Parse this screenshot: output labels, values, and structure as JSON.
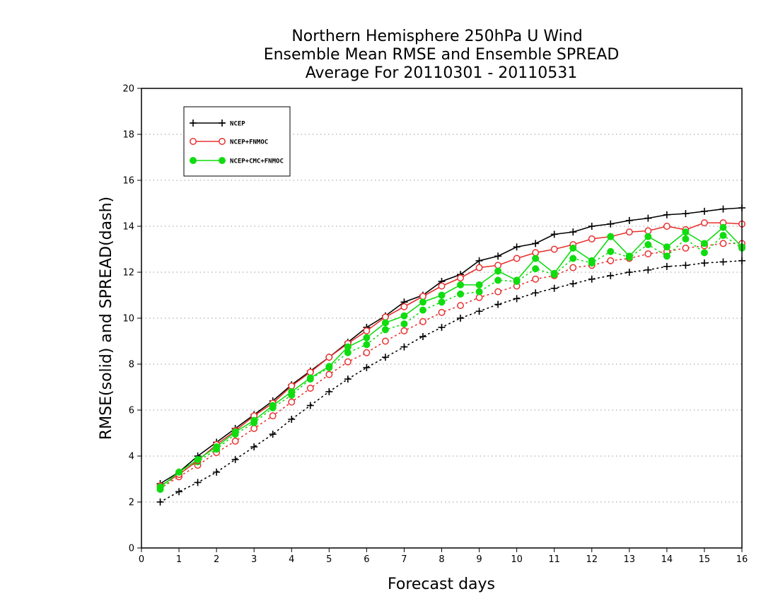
{
  "chart_data": {
    "type": "line",
    "title": [
      "Northern Hemisphere 250hPa U Wind",
      "Ensemble Mean RMSE and Ensemble SPREAD",
      "Average For 20110301 - 20110531"
    ],
    "xlabel": "Forecast days",
    "ylabel": "RMSE(solid) and SPREAD(dash)",
    "xlim": [
      0,
      16
    ],
    "ylim": [
      0,
      20
    ],
    "x_ticks": [
      0,
      1,
      2,
      3,
      4,
      5,
      6,
      7,
      8,
      9,
      10,
      11,
      12,
      13,
      14,
      15,
      16
    ],
    "y_ticks": [
      0,
      2,
      4,
      6,
      8,
      10,
      12,
      14,
      16,
      18,
      20
    ],
    "grid": "horizontal dotted",
    "legend_position": "top-left",
    "x": [
      0.5,
      1,
      1.5,
      2,
      2.5,
      3,
      3.5,
      4,
      4.5,
      5,
      5.5,
      6,
      6.5,
      7,
      7.5,
      8,
      8.5,
      9,
      9.5,
      10,
      10.5,
      11,
      11.5,
      12,
      12.5,
      13,
      13.5,
      14,
      14.5,
      15,
      15.5,
      16
    ],
    "series": [
      {
        "name": "NCEP",
        "color": "#000000",
        "marker": "plus",
        "rmse": [
          2.8,
          3.3,
          4.0,
          4.6,
          5.2,
          5.8,
          6.4,
          7.1,
          7.7,
          8.3,
          8.95,
          9.6,
          10.1,
          10.7,
          11.0,
          11.6,
          11.9,
          12.5,
          12.7,
          13.1,
          13.25,
          13.65,
          13.75,
          14.0,
          14.1,
          14.25,
          14.35,
          14.5,
          14.55,
          14.65,
          14.75,
          14.8
        ],
        "spread": [
          2.0,
          2.45,
          2.85,
          3.3,
          3.85,
          4.4,
          4.95,
          5.6,
          6.2,
          6.8,
          7.35,
          7.85,
          8.3,
          8.75,
          9.2,
          9.6,
          10.0,
          10.3,
          10.6,
          10.85,
          11.1,
          11.3,
          11.5,
          11.7,
          11.85,
          12.0,
          12.1,
          12.25,
          12.3,
          12.4,
          12.45,
          12.5
        ]
      },
      {
        "name": "NCEP+FNMOC",
        "color": "#e83030",
        "marker": "open-circle",
        "rmse": [
          2.7,
          3.2,
          3.8,
          4.5,
          5.1,
          5.75,
          6.3,
          7.05,
          7.65,
          8.3,
          8.9,
          9.45,
          10.05,
          10.5,
          10.95,
          11.4,
          11.75,
          12.2,
          12.3,
          12.6,
          12.85,
          13.0,
          13.2,
          13.45,
          13.55,
          13.75,
          13.8,
          14.0,
          13.85,
          14.15,
          14.15,
          14.1
        ],
        "spread": [
          2.6,
          3.1,
          3.6,
          4.15,
          4.65,
          5.2,
          5.75,
          6.35,
          6.95,
          7.55,
          8.1,
          8.5,
          9.0,
          9.45,
          9.85,
          10.25,
          10.55,
          10.9,
          11.15,
          11.4,
          11.7,
          11.85,
          12.2,
          12.3,
          12.5,
          12.6,
          12.8,
          12.9,
          13.05,
          13.15,
          13.25,
          13.25
        ]
      },
      {
        "name": "NCEP+CMC+FNMOC",
        "color": "#10dc10",
        "marker": "filled-circle",
        "rmse": [
          2.65,
          3.3,
          3.85,
          4.4,
          5.05,
          5.55,
          6.2,
          6.8,
          7.4,
          7.9,
          8.75,
          9.15,
          9.8,
          10.1,
          10.7,
          11.0,
          11.45,
          11.45,
          12.05,
          11.65,
          12.6,
          11.95,
          13.05,
          12.5,
          13.55,
          12.7,
          13.55,
          13.1,
          13.75,
          13.25,
          13.95,
          13.1
        ],
        "spread": [
          2.55,
          3.25,
          3.75,
          4.3,
          4.95,
          5.45,
          6.1,
          6.65,
          7.35,
          7.85,
          8.5,
          8.85,
          9.5,
          9.75,
          10.35,
          10.7,
          11.05,
          11.15,
          11.65,
          11.6,
          12.15,
          11.9,
          12.6,
          12.4,
          12.9,
          12.65,
          13.2,
          12.7,
          13.45,
          12.85,
          13.6,
          13.05
        ]
      }
    ]
  }
}
